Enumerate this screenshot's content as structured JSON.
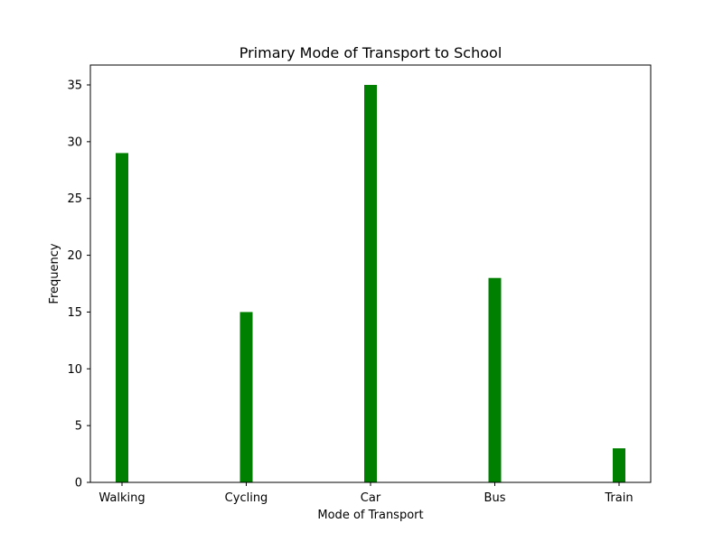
{
  "chart_data": {
    "type": "bar",
    "title": "Primary Mode of Transport to School",
    "xlabel": "Mode of Transport",
    "ylabel": "Frequency",
    "categories": [
      "Walking",
      "Cycling",
      "Car",
      "Bus",
      "Train"
    ],
    "values": [
      29,
      15,
      35,
      18,
      3
    ],
    "ylim": [
      0,
      36.75
    ],
    "yticks": [
      0,
      5,
      10,
      15,
      20,
      25,
      30,
      35
    ],
    "bar_color": "#008000",
    "grid": false,
    "legend": "none"
  }
}
